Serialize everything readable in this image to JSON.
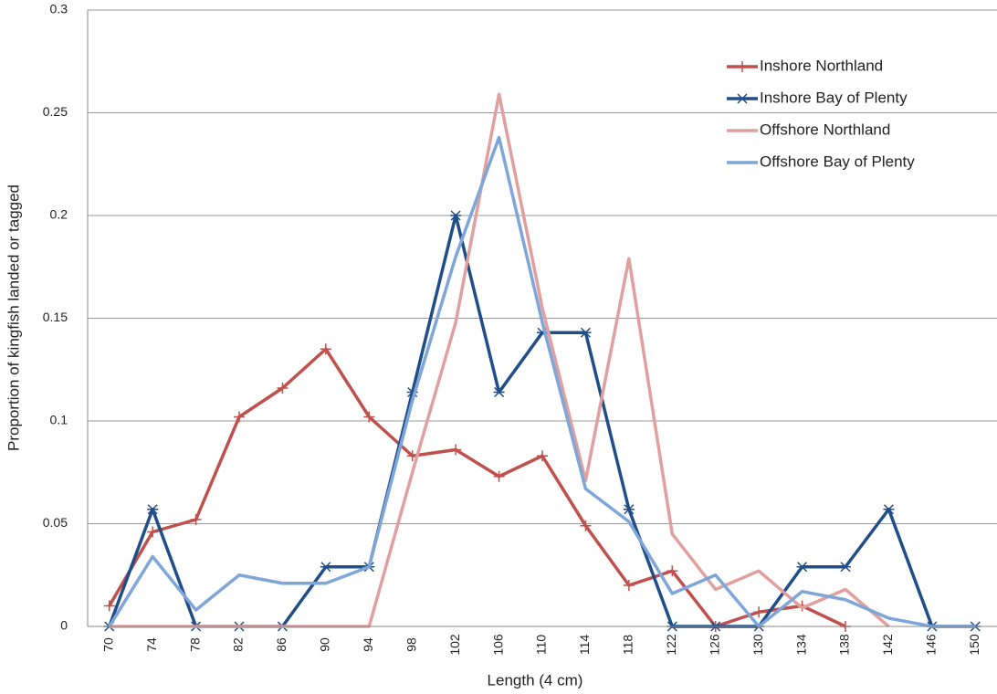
{
  "chart_data": {
    "type": "line",
    "x_label": "Length (4 cm)",
    "y_label": "Proportion of kingfish landed or tagged",
    "categories": [
      "70",
      "74",
      "78",
      "82",
      "86",
      "90",
      "94",
      "98",
      "102",
      "106",
      "110",
      "114",
      "118",
      "122",
      "126",
      "130",
      "134",
      "138",
      "142",
      "146",
      "150"
    ],
    "series": [
      {
        "name": "Inshore Northland",
        "color": "#c0504d",
        "marker": "+",
        "values": [
          0.01,
          0.046,
          0.052,
          0.102,
          0.116,
          0.135,
          0.102,
          0.083,
          0.086,
          0.073,
          0.083,
          0.049,
          0.02,
          0.027,
          0,
          0.007,
          0.01,
          0,
          null,
          null,
          null
        ]
      },
      {
        "name": "Inshore Bay of Plenty",
        "color": "#1f4e89",
        "marker": "*",
        "values": [
          0,
          0.057,
          0,
          0,
          0,
          0.029,
          0.029,
          0.114,
          0.2,
          0.114,
          0.143,
          0.143,
          0.057,
          0,
          0,
          0,
          0.029,
          0.029,
          0.057,
          0,
          0
        ]
      },
      {
        "name": "Offshore Northland",
        "color": "#e0a0a0",
        "values": [
          0,
          0,
          0,
          0,
          0,
          0,
          0,
          0.075,
          0.148,
          0.259,
          0.155,
          0.071,
          0.179,
          0.045,
          0.018,
          0.027,
          0.009,
          0.018,
          0,
          null,
          null
        ]
      },
      {
        "name": "Offshore Bay of Plenty",
        "color": "#7ea6d8",
        "values": [
          0,
          0.034,
          0.008,
          0.025,
          0.021,
          0.021,
          0.029,
          0.11,
          0.18,
          0.238,
          0.148,
          0.067,
          0.051,
          0.016,
          0.025,
          0,
          0.017,
          0.013,
          0.004,
          0,
          0
        ]
      }
    ],
    "ylim": [
      0,
      0.3
    ],
    "yticks": [
      0,
      0.05,
      0.1,
      0.15,
      0.2,
      0.25,
      0.3
    ],
    "grid": true,
    "legend": "top-right"
  }
}
